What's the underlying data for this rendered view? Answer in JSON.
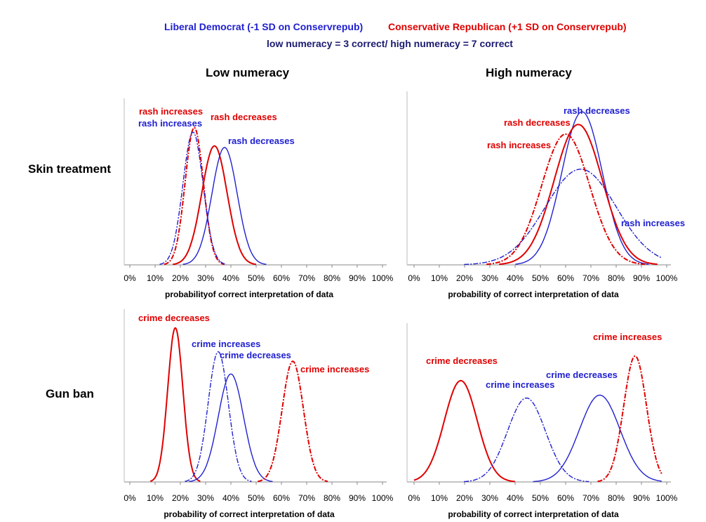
{
  "legend": {
    "liberal": "Liberal Democrat (-1 SD on Conservrepub)",
    "conservative": "Conservative Republican (+1 SD on Conservrepub)",
    "numeracy_note": "low numeracy =  3 correct/ high numeracy = 7 correct"
  },
  "columns": [
    "Low numeracy",
    "High numeracy"
  ],
  "rows": [
    "Skin treatment",
    "Gun ban"
  ],
  "colors": {
    "liberal": "#2020d0",
    "conservative": "#e00000"
  },
  "chart_data": [
    {
      "type": "line",
      "id": "skin-low",
      "xlabel": "probabilityof correct interpretation of data",
      "xlim": [
        0,
        100
      ],
      "ylim": [
        0,
        1
      ],
      "grid": false,
      "tick_labels": [
        "0%",
        "10%",
        "20%",
        "30%",
        "40%",
        "50%",
        "60%",
        "70%",
        "80%",
        "90%",
        "100%"
      ],
      "series": [
        {
          "name": "rash increases",
          "party": "conservative",
          "dash": true,
          "mean": 25.5,
          "sd": 3.6,
          "peak": 0.9,
          "label": "rash increases"
        },
        {
          "name": "rash increases",
          "party": "liberal",
          "dash": true,
          "mean": 25.0,
          "sd": 4.0,
          "peak": 0.87,
          "label": "rash increases"
        },
        {
          "name": "rash decreases",
          "party": "conservative",
          "dash": false,
          "mean": 33.5,
          "sd": 5.0,
          "peak": 0.78,
          "label": "rash decreases"
        },
        {
          "name": "rash decreases",
          "party": "liberal",
          "dash": false,
          "mean": 37.5,
          "sd": 5.0,
          "peak": 0.77,
          "label": "rash decreases"
        }
      ]
    },
    {
      "type": "line",
      "id": "skin-high",
      "xlabel": "probability of correct interpretation of data",
      "xlim": [
        0,
        100
      ],
      "ylim": [
        0,
        1
      ],
      "grid": false,
      "tick_labels": [
        "0%",
        "10%",
        "20%",
        "30%",
        "40%",
        "50%",
        "60%",
        "70%",
        "80%",
        "90%",
        "100%"
      ],
      "series": [
        {
          "name": "rash decreases",
          "party": "liberal",
          "dash": false,
          "mean": 66.5,
          "sd": 8.0,
          "peak": 0.96,
          "label": "rash decreases"
        },
        {
          "name": "rash decreases",
          "party": "conservative",
          "dash": false,
          "mean": 65.0,
          "sd": 9.5,
          "peak": 0.88,
          "label": "rash decreases"
        },
        {
          "name": "rash increases",
          "party": "conservative",
          "dash": true,
          "mean": 60.0,
          "sd": 9.5,
          "peak": 0.82,
          "label": "rash increases"
        },
        {
          "name": "rash increases",
          "party": "liberal",
          "dash": true,
          "mean": 66.0,
          "sd": 14.0,
          "peak": 0.6,
          "label": "rash increases"
        }
      ]
    },
    {
      "type": "line",
      "id": "gun-low",
      "xlabel": "probability of correct interpretation of data",
      "xlim": [
        0,
        100
      ],
      "ylim": [
        0,
        1
      ],
      "grid": false,
      "tick_labels": [
        "0%",
        "10%",
        "20%",
        "30%",
        "40%",
        "50%",
        "60%",
        "70%",
        "80%",
        "90%",
        "100%"
      ],
      "series": [
        {
          "name": "crime decreases",
          "party": "conservative",
          "dash": false,
          "mean": 18.0,
          "sd": 3.0,
          "peak": 0.97,
          "label": "crime decreases"
        },
        {
          "name": "crime increases",
          "party": "liberal",
          "dash": true,
          "mean": 35.0,
          "sd": 4.0,
          "peak": 0.82,
          "label": "crime increases"
        },
        {
          "name": "crime decreases",
          "party": "liberal",
          "dash": false,
          "mean": 40.0,
          "sd": 5.0,
          "peak": 0.68,
          "label": "crime decreases"
        },
        {
          "name": "crime increases",
          "party": "conservative",
          "dash": true,
          "mean": 64.5,
          "sd": 4.2,
          "peak": 0.76,
          "label": "crime increases"
        }
      ]
    },
    {
      "type": "line",
      "id": "gun-high",
      "xlabel": "probability of correct interpretation of data",
      "xlim": [
        0,
        100
      ],
      "ylim": [
        0,
        1
      ],
      "grid": false,
      "tick_labels": [
        "0%",
        "10%",
        "20%",
        "30%",
        "40%",
        "50%",
        "60%",
        "70%",
        "80%",
        "90%",
        "100%"
      ],
      "series": [
        {
          "name": "crime decreases",
          "party": "conservative",
          "dash": false,
          "mean": 18.5,
          "sd": 6.5,
          "peak": 0.7,
          "label": "crime decreases"
        },
        {
          "name": "crime increases",
          "party": "liberal",
          "dash": true,
          "mean": 44.5,
          "sd": 7.5,
          "peak": 0.58,
          "label": "crime increases"
        },
        {
          "name": "crime decreases",
          "party": "liberal",
          "dash": false,
          "mean": 73.5,
          "sd": 8.0,
          "peak": 0.6,
          "label": "crime decreases"
        },
        {
          "name": "crime increases",
          "party": "conservative",
          "dash": true,
          "mean": 87.5,
          "sd": 4.5,
          "peak": 0.87,
          "label": "crime increases"
        }
      ]
    }
  ]
}
